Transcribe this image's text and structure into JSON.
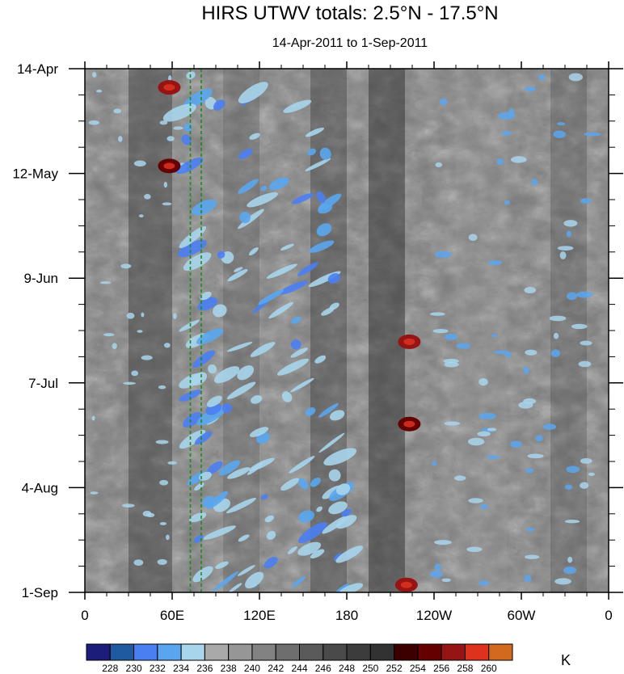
{
  "chart_data": {
    "type": "heatmap",
    "title": "HIRS UTWV totals: 2.5°N - 17.5°N",
    "subtitle": "14-Apr-2011 to 1-Sep-2011",
    "x_axis": {
      "label": "",
      "range_deg_east": [
        0,
        360
      ],
      "ticks": [
        {
          "deg": 0,
          "label": "0"
        },
        {
          "deg": 60,
          "label": "60E"
        },
        {
          "deg": 120,
          "label": "120E"
        },
        {
          "deg": 180,
          "label": "180"
        },
        {
          "deg": 240,
          "label": "120W"
        },
        {
          "deg": 300,
          "label": "60W"
        },
        {
          "deg": 360,
          "label": "0"
        }
      ]
    },
    "y_axis": {
      "label": "",
      "range_days": [
        0,
        140
      ],
      "ticks": [
        {
          "day": 0,
          "label": "14-Apr"
        },
        {
          "day": 28,
          "label": "12-May"
        },
        {
          "day": 56,
          "label": "9-Jun"
        },
        {
          "day": 84,
          "label": "7-Jul"
        },
        {
          "day": 112,
          "label": "4-Aug"
        },
        {
          "day": 140,
          "label": "1-Sep"
        }
      ]
    },
    "reference_lines_deg_east": [
      72.5,
      80
    ],
    "colorbar": {
      "units": "K",
      "levels": [
        228,
        230,
        232,
        234,
        236,
        238,
        240,
        242,
        244,
        246,
        248,
        250,
        252,
        254,
        256,
        258,
        260
      ],
      "colors": [
        "#1c1c7a",
        "#1f5aa0",
        "#4a7ff2",
        "#5aa6ee",
        "#a9d5ec",
        "#a9a9a9",
        "#969696",
        "#828282",
        "#6e6e6e",
        "#5a5a5a",
        "#4a4a4a",
        "#3c3c3c",
        "#323232",
        "#3c0000",
        "#640000",
        "#961414",
        "#dc321e",
        "#d2691e"
      ]
    },
    "regions": {
      "moist_band_lon_deg": [
        65,
        95
      ],
      "moist_band_desc": "blue values 228-236 K concentrated between ~65E and ~160E",
      "dry_bands_lon_deg": [
        [
          200,
          215
        ],
        [
          35,
          55
        ]
      ],
      "hot_spots": [
        {
          "lon": 58,
          "day": 5,
          "value": 258
        },
        {
          "lon": 58,
          "day": 26,
          "value": 256
        },
        {
          "lon": 223,
          "day": 73,
          "value": 258
        },
        {
          "lon": 223,
          "day": 95,
          "value": 256
        },
        {
          "lon": 221,
          "day": 138,
          "value": 258
        }
      ]
    }
  }
}
